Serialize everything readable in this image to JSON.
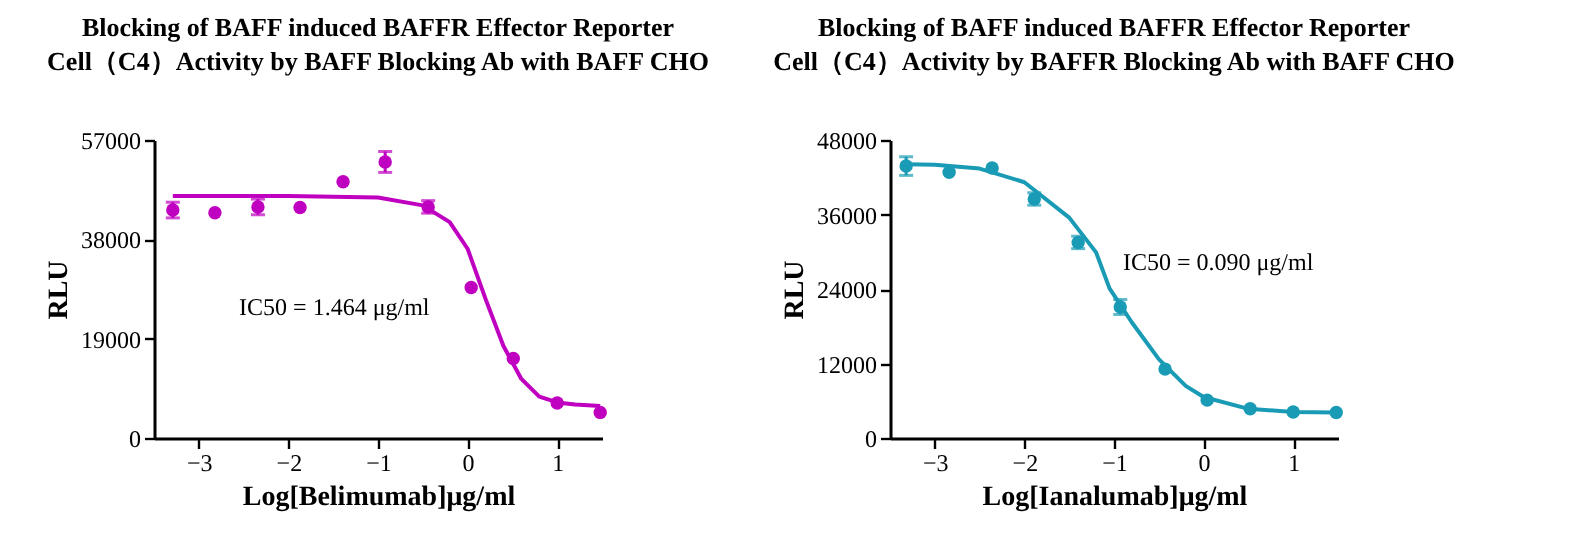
{
  "chart_data": [
    {
      "type": "scatter",
      "title": "Blocking of BAFF induced BAFFR Effector Reporter\nCell（C4）Activity by BAFF Blocking Ab with BAFF CHO",
      "xlabel": "Log[Belimumab]μg/ml",
      "ylabel": "RLU",
      "annotations": [
        "IC50 = 1.464 μg/ml"
      ],
      "xlim": [
        -3.5,
        1.5
      ],
      "xticks": [
        -3,
        -2,
        -1,
        0,
        1
      ],
      "ylim": [
        0,
        57000
      ],
      "yticks": [
        0,
        19000,
        38000,
        57000
      ],
      "grid": false,
      "line_style": "solid",
      "series": [
        {
          "marker": "circle",
          "color": "#c000c0",
          "x": [
            -3.29,
            -2.82,
            -2.34,
            -1.87,
            -1.39,
            -0.92,
            -0.44,
            0.04,
            0.51,
            1.0,
            1.48
          ],
          "values": [
            43600,
            43100,
            44200,
            44100,
            49000,
            52800,
            44200,
            28800,
            15200,
            6700,
            4900
          ],
          "errors": [
            1500,
            null,
            1500,
            null,
            null,
            2000,
            1200,
            null,
            null,
            null,
            null
          ]
        },
        {
          "type": "line",
          "color": "#c000c0",
          "x": [
            -3.29,
            -2,
            -1,
            -0.5,
            -0.2,
            0,
            0.2,
            0.4,
            0.6,
            0.8,
            1.0,
            1.2,
            1.48
          ],
          "values": [
            46300,
            46300,
            46000,
            44500,
            41300,
            36200,
            26600,
            17600,
            11300,
            7900,
            6800,
            6400,
            6100
          ]
        }
      ]
    },
    {
      "type": "scatter",
      "title": "Blocking of BAFF induced BAFFR Effector Reporter\nCell（C4）Activity by BAFFR Blocking Ab with BAFF CHO",
      "xlabel": "Log[Ianalumab]μg/ml",
      "ylabel": "RLU",
      "annotations": [
        "IC50 = 0.090 μg/ml"
      ],
      "xlim": [
        -3.5,
        1.5
      ],
      "xticks": [
        -3,
        -2,
        -1,
        0,
        1
      ],
      "ylim": [
        0,
        48000
      ],
      "yticks": [
        0,
        12000,
        24000,
        36000,
        48000
      ],
      "grid": false,
      "line_style": "solid",
      "series": [
        {
          "marker": "circle",
          "color": "#1a9bb5",
          "x": [
            -3.32,
            -2.84,
            -2.36,
            -1.89,
            -1.4,
            -0.93,
            -0.43,
            0.04,
            0.52,
            1.0,
            1.48
          ],
          "values": [
            43800,
            42800,
            43500,
            38500,
            31500,
            21100,
            11100,
            6100,
            4700,
            4200,
            4100
          ],
          "errors": [
            1500,
            null,
            null,
            1000,
            1000,
            1200,
            null,
            null,
            null,
            null,
            null
          ]
        },
        {
          "type": "line",
          "color": "#1a9bb5",
          "x": [
            -3.32,
            -3,
            -2.5,
            -2,
            -1.5,
            -1.2,
            -1.05,
            -0.8,
            -0.5,
            -0.2,
            0,
            0.5,
            1,
            1.48
          ],
          "values": [
            44100,
            44000,
            43400,
            41200,
            35500,
            29900,
            24100,
            18600,
            12700,
            8400,
            6600,
            4700,
            4200,
            4100
          ]
        }
      ]
    }
  ]
}
